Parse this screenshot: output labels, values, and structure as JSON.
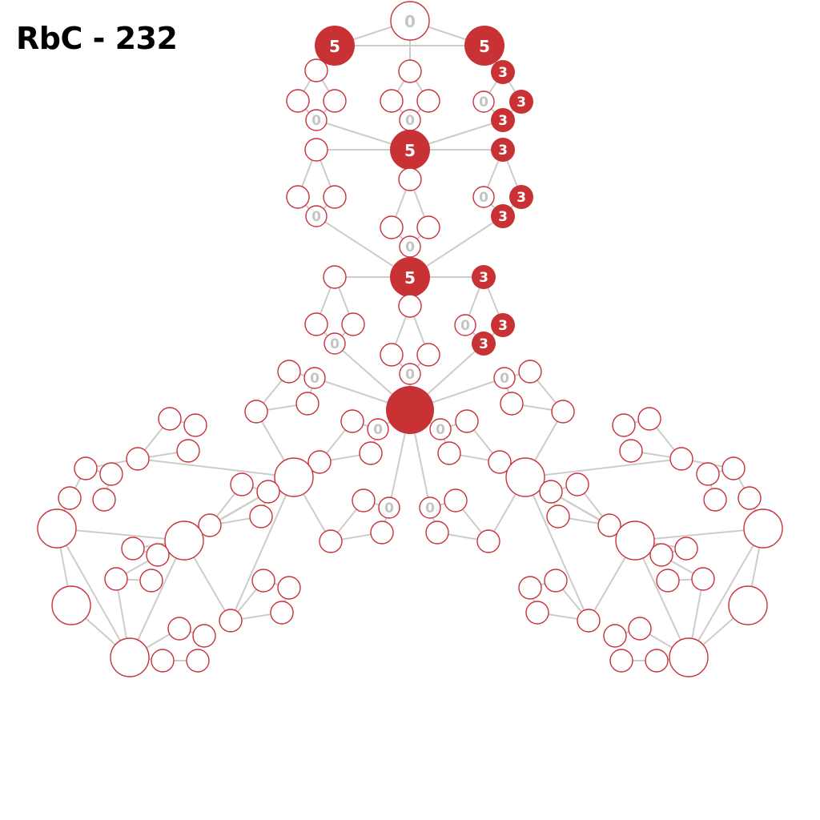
{
  "title": "RbC - 232",
  "colors": {
    "accent": "#c83234",
    "edge": "#cccccc",
    "zero_label": "#c4c4c4",
    "node_fill": "#ffffff"
  },
  "labels": {
    "top": "0",
    "top_left": "5",
    "top_right": "5",
    "a1": "3",
    "a2": "0",
    "a3": "3",
    "a4": "3",
    "b0": "0",
    "b_left": "0",
    "hub1": "5",
    "b1": "3",
    "c1": "0",
    "c2": "3",
    "c3": "3",
    "c_left": "0",
    "c_mid": "0",
    "hub2": "5",
    "h2r": "3",
    "d1": "0",
    "d2": "3",
    "d3": "3",
    "d_left": "0",
    "d_mid": "0",
    "r_left": "0",
    "r_right": "0",
    "r_in_left": "0",
    "r_in_right": "0",
    "r_low_left": "0",
    "r_low_right": "0"
  }
}
